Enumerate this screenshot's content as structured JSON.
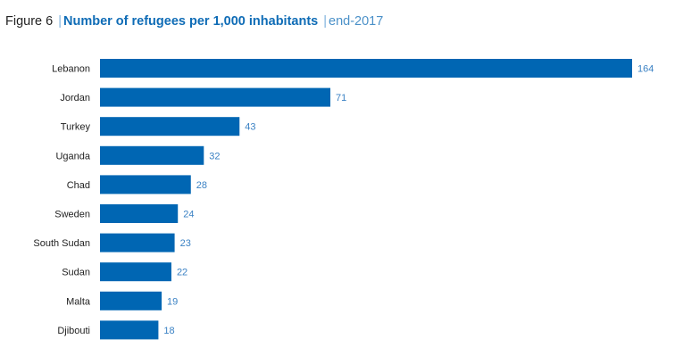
{
  "header": {
    "figure": "Figure 6",
    "title": "Number of refugees per 1,000 inhabitants",
    "period": "end-2017"
  },
  "chart_data": {
    "type": "bar",
    "orientation": "horizontal",
    "title": "Number of refugees per 1,000 inhabitants",
    "categories": [
      "Lebanon",
      "Jordan",
      "Turkey",
      "Uganda",
      "Chad",
      "Sweden",
      "South Sudan",
      "Sudan",
      "Malta",
      "Djibouti"
    ],
    "values": [
      164,
      71,
      43,
      32,
      28,
      24,
      23,
      22,
      19,
      18
    ],
    "xlim": [
      0,
      164
    ],
    "grid": false,
    "bar_color": "#0066b3",
    "value_label_color": "#3b82c4"
  }
}
